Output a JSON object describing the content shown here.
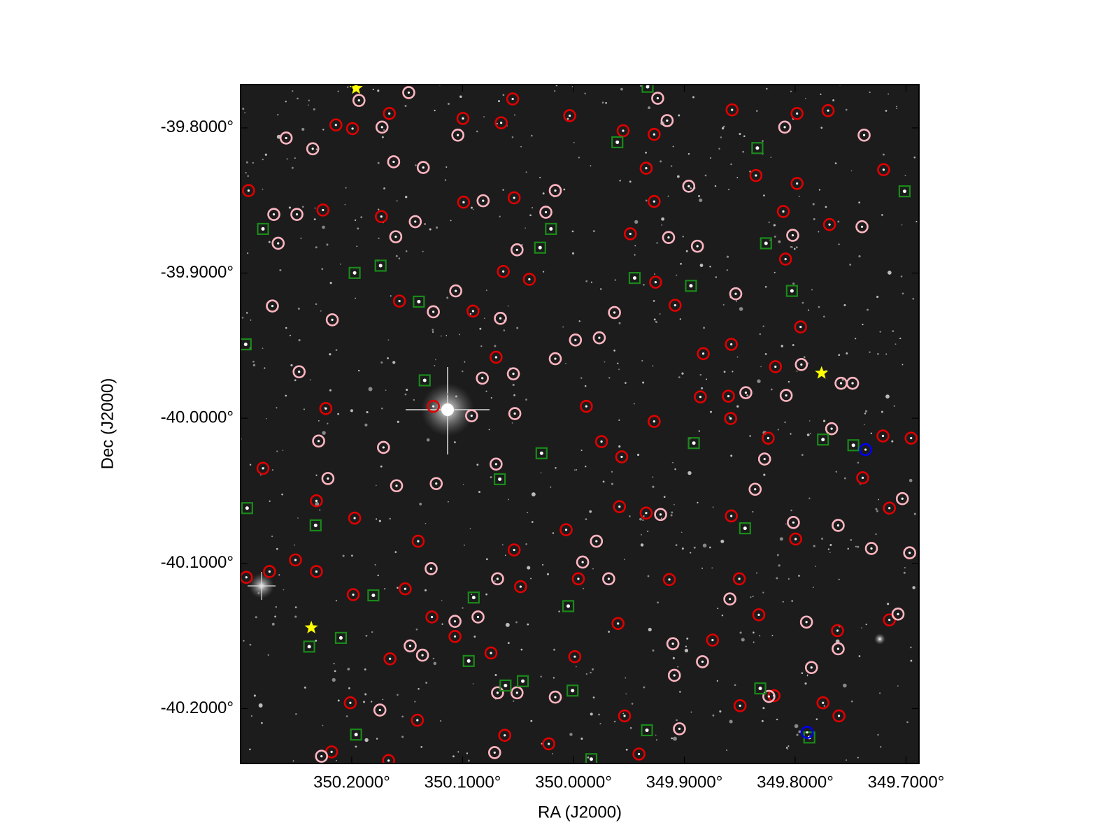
{
  "chart_data": {
    "type": "scatter",
    "xlabel": "RA (J2000)",
    "ylabel": "Dec (J2000)",
    "xlim": [
      350.3003,
      349.6883
    ],
    "ylim": [
      -40.2378,
      -39.7702
    ],
    "xticks": [
      {
        "value": 350.2,
        "label": "350.2000°"
      },
      {
        "value": 350.1,
        "label": "350.1000°"
      },
      {
        "value": 350.0,
        "label": "350.0000°"
      },
      {
        "value": 349.9,
        "label": "349.9000°"
      },
      {
        "value": 349.8,
        "label": "349.8000°"
      },
      {
        "value": 349.7,
        "label": "349.7000°"
      }
    ],
    "yticks": [
      {
        "value": -39.8,
        "label": "-39.8000°"
      },
      {
        "value": -39.9,
        "label": "-39.9000°"
      },
      {
        "value": -40,
        "label": "-40.0000°"
      },
      {
        "value": -40.1,
        "label": "-40.1000°"
      },
      {
        "value": -40.2,
        "label": "-40.2000°"
      }
    ],
    "series": [
      {
        "color": "#e00000",
        "marker": "circle",
        "x": [
          350.2143,
          350.1993,
          350.1661,
          350.0997,
          350.0652,
          350.0548,
          350.0034,
          349.9552,
          349.9272,
          349.8569,
          349.7703,
          349.7983,
          349.7202,
          349.8354,
          349.9344,
          350.0535,
          350.0991,
          350.1733,
          350.226,
          350.2931,
          349.8107,
          349.769,
          349.7983,
          349.9272,
          349.9487,
          349.8087,
          350.0633,
          350.0398,
          349.9259,
          349.9083,
          350.0906,
          350.157,
          349.7951,
          349.8576,
          349.8829,
          349.8178,
          350.0698,
          350.1264,
          350.2234,
          349.8602,
          349.8855,
          349.9884,
          349.9272,
          349.8582,
          349.9747,
          349.9565,
          350.2801,
          349.8243,
          349.7208,
          349.6954,
          349.7391,
          349.9585,
          349.9344,
          349.8576,
          349.7996,
          349.715,
          350.2319,
          350.1974,
          350.1401,
          350.0066,
          350.0535,
          350.2742,
          350.2508,
          350.2951,
          350.2319,
          350.1987,
          350.1518,
          350.1277,
          350.0477,
          349.9956,
          349.9135,
          349.8504,
          349.8328,
          349.7618,
          350.1655,
          350.1069,
          350.0744,
          349.9598,
          349.8745,
          349.9539,
          349.9409,
          349.7749,
          349.7605,
          350.2013,
          350.1668,
          350.2182,
          350.062,
          350.0223,
          349.8497,
          349.8191,
          349.715,
          349.9988,
          350.1408
        ],
        "y": [
          -39.798,
          -39.8005,
          -39.7901,
          -39.7935,
          -39.7965,
          -39.7801,
          -39.7916,
          -39.802,
          -39.8045,
          -39.7876,
          -39.7881,
          -39.7901,
          -39.8288,
          -39.8328,
          -39.8278,
          -39.8482,
          -39.8512,
          -39.8611,
          -39.8566,
          -39.8432,
          -39.8576,
          -39.8666,
          -39.8383,
          -39.8507,
          -39.873,
          -39.8904,
          -39.8989,
          -39.9043,
          -39.9063,
          -39.9222,
          -39.9262,
          -39.9193,
          -39.9371,
          -39.9491,
          -39.9555,
          -39.9645,
          -39.958,
          -39.9918,
          -39.9933,
          -39.9848,
          -39.9853,
          -39.9918,
          -40.0022,
          -40.0002,
          -40.0161,
          -40.0266,
          -40.0345,
          -40.0137,
          -40.0122,
          -40.0137,
          -40.041,
          -40.0609,
          -40.0653,
          -40.0673,
          -40.0832,
          -40.0619,
          -40.0569,
          -40.0688,
          -40.0847,
          -40.0768,
          -40.0907,
          -40.1056,
          -40.0976,
          -40.1096,
          -40.1056,
          -40.1215,
          -40.1175,
          -40.1369,
          -40.116,
          -40.1106,
          -40.1111,
          -40.1106,
          -40.1354,
          -40.1463,
          -40.1657,
          -40.1503,
          -40.1617,
          -40.1414,
          -40.1528,
          -40.205,
          -40.2313,
          -40.196,
          -40.205,
          -40.196,
          -40.2358,
          -40.2298,
          -40.2184,
          -40.2243,
          -40.198,
          -40.1911,
          -40.1389,
          -40.1642,
          -40.208
        ]
      },
      {
        "color": "#ffb6c1",
        "marker": "circle",
        "x": [
          350.2592,
          350.2352,
          350.1727,
          350.1355,
          350.1622,
          350.2703,
          350.2495,
          350.2664,
          350.1427,
          350.1603,
          350.1043,
          350.0815,
          350.0249,
          350.0164,
          350.0509,
          350.1062,
          350.1264,
          350.0659,
          349.9982,
          349.9767,
          349.963,
          350.0164,
          350.0542,
          350.0822,
          350.0919,
          350.0698,
          350.0529,
          350.1714,
          350.1596,
          350.1238,
          350.2215,
          350.2299,
          350.2475,
          350.2176,
          350.2716,
          349.9155,
          349.896,
          349.9142,
          349.8882,
          349.8536,
          349.8094,
          349.8022,
          349.7378,
          349.7397,
          349.7944,
          349.7482,
          349.7586,
          349.8081,
          349.8445,
          349.7671,
          349.8361,
          349.8276,
          349.8016,
          349.9214,
          349.9793,
          349.9917,
          349.9682,
          350.0685,
          350.1284,
          350.1069,
          350.0861,
          350.1473,
          350.1362,
          350.0685,
          350.0509,
          350.0164,
          349.9103,
          349.909,
          349.8836,
          349.8589,
          349.7898,
          349.7853,
          349.7612,
          349.7612,
          349.7312,
          349.7033,
          349.6967,
          349.7072,
          350.1746,
          350.2273,
          350.0711,
          349.9044,
          349.8237,
          350.1935,
          350.1486,
          349.924
        ],
        "y": [
          -39.807,
          -39.8144,
          -39.7995,
          -39.8273,
          -39.8234,
          -39.8596,
          -39.8596,
          -39.8795,
          -39.8646,
          -39.875,
          -39.805,
          -39.8502,
          -39.8581,
          -39.8432,
          -39.884,
          -39.9123,
          -39.9267,
          -39.9312,
          -39.9461,
          -39.9446,
          -39.9272,
          -39.959,
          -39.9694,
          -39.9724,
          -39.9983,
          -40.0316,
          -39.9968,
          -40.0201,
          -40.0465,
          -40.045,
          -40.0415,
          -40.0157,
          -39.968,
          -39.9322,
          -39.9227,
          -39.795,
          -39.8402,
          -39.8755,
          -39.8815,
          -39.9143,
          -39.7995,
          -39.874,
          -39.805,
          -39.8681,
          -39.963,
          -39.9759,
          -39.9759,
          -39.9843,
          -39.9824,
          -40.0072,
          -40.0489,
          -40.0281,
          -40.0718,
          -40.0663,
          -40.0847,
          -40.0991,
          -40.1106,
          -40.1106,
          -40.1036,
          -40.1399,
          -40.1369,
          -40.1568,
          -40.1632,
          -40.1891,
          -40.1891,
          -40.1921,
          -40.1553,
          -40.1771,
          -40.1677,
          -40.1245,
          -40.1404,
          -40.1717,
          -40.1588,
          -40.0738,
          -40.0897,
          -40.0554,
          -40.0927,
          -40.1349,
          -40.201,
          -40.2328,
          -40.2303,
          -40.2139,
          -40.1916,
          -39.7811,
          -39.7757,
          -39.7796
        ]
      },
      {
        "color": "#1a8a1a",
        "marker": "square",
        "x": [
          350.2801,
          350.1974,
          350.174,
          350.1395,
          350.1342,
          350.0301,
          350.0203,
          349.9604,
          349.9448,
          349.894,
          349.8341,
          349.8263,
          349.8029,
          349.7013,
          350.2957,
          350.2944,
          350.2326,
          350.0665,
          350.0288,
          349.8914,
          349.8452,
          349.7749,
          349.7475,
          350.2384,
          350.2098,
          350.1805,
          350.09,
          350.0047,
          350.0945,
          350.0613,
          350.0457,
          350.0008,
          349.9337,
          349.8315,
          350.1961,
          349.7872,
          349.9839,
          349.9331
        ],
        "y": [
          -39.8696,
          -39.8999,
          -39.8949,
          -39.9197,
          -39.9739,
          -39.8825,
          -39.8696,
          -39.8099,
          -39.9034,
          -39.9088,
          -39.8139,
          -39.8795,
          -39.9123,
          -39.8437,
          -39.9491,
          -40.0619,
          -40.0738,
          -40.042,
          -40.0241,
          -40.0171,
          -40.0758,
          -40.0147,
          -40.0186,
          -40.1573,
          -40.1513,
          -40.122,
          -40.1235,
          -40.1294,
          -40.1672,
          -40.1841,
          -40.1811,
          -40.1876,
          -40.2149,
          -40.1861,
          -40.2179,
          -40.2199,
          -40.2348,
          -39.7717
        ]
      },
      {
        "color": "#0000ee",
        "marker": "circle",
        "x": [
          349.7365,
          349.7892
        ],
        "y": [
          -40.0216,
          -40.2164
        ]
      },
      {
        "color": "#ffff00",
        "marker": "star",
        "x": [
          350.1961,
          349.7762,
          350.2365
        ],
        "y": [
          -39.7727,
          -39.9689,
          -40.1443
        ]
      }
    ]
  }
}
